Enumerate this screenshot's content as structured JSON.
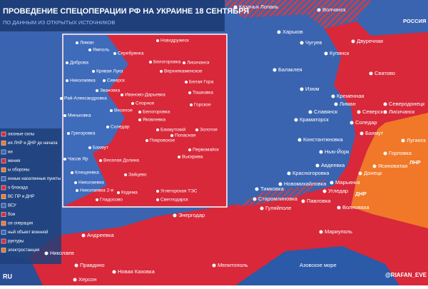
{
  "header": {
    "title": "ПРОВЕДЕНИЕ СПЕЦОПЕРАЦИИ РФ НА УКРАИНЕ 18 СЕНТЯБРЯ",
    "subtitle": "ПО ДАННЫМ ИЗ ОТКРЫТЫХ ИСТОЧНИКОВ"
  },
  "map_labels": [
    "Казачья Лопань",
    "Волчанск",
    "РОССИЯ",
    "Харьков",
    "Двуречная",
    "Чугуев",
    "Купянск",
    "Балаклея",
    "Сватово",
    "Изюм",
    "Кременная",
    "Северодонецк",
    "Лисичанск",
    "Лиман",
    "Славянск",
    "Северск",
    "Краматорск",
    "Соледар",
    "Бахмут",
    "Константиновка",
    "Нью-Йорк",
    "Горловка",
    "Луганск",
    "ЛНР",
    "Авдеевка",
    "Ясиноватая",
    "Красногоровка",
    "Донецк",
    "Марьинка",
    "Новомихайловка",
    "Угледар",
    "ДНР",
    "Тимковка",
    "Старомлиновка",
    "Павловка",
    "Волноваха",
    "Гуляйполе",
    "Энергодар",
    "Андреевка",
    "Николаев",
    "Мариуполь",
    "Правдино",
    "Мелитополь",
    "Новая Каховка",
    "Херсон",
    "Азовское море"
  ],
  "inset_labels": [
    "Лиман",
    "Новодружеск",
    "Ямполь",
    "Серебрянка",
    "Диброва",
    "Белогоровка",
    "Лисичанск",
    "Кривая Лука",
    "Верхнекаменское",
    "Николаевка",
    "Северск",
    "Белая Гора",
    "Звановка",
    "Иваново-Дарьевка",
    "Тошковка",
    "Рай-Александровка",
    "Спорное",
    "Горское",
    "Веселое",
    "Белогоровка",
    "Миньковка",
    "Яковлевка",
    "Соледар",
    "Бахмутский",
    "Попасная",
    "Золотое",
    "Григоровка",
    "Покровское",
    "Бахмут",
    "Первомайск",
    "Часов Яр",
    "Веселая Долина",
    "Выскрива",
    "Клещеевка",
    "Зайцево",
    "Николаевка",
    "Николаевка 2-я",
    "Кодема",
    "Углегорская ТЭС",
    "Гладосово",
    "Светлодарск"
  ],
  "legend": [
    "оюзные силы",
    "ия ЛНР и ДНР до начала",
    "ии",
    "жения",
    "ы обороны",
    "енные населенные пункты",
    "о блокада",
    "ВС ПР и ДНР",
    "ВСУ",
    "бои",
    "ое операция",
    "ный объект военной",
    "руктуры",
    "электростанция"
  ],
  "footer": {
    "site": "RU",
    "handle": "@RIAFAN_EVE"
  }
}
